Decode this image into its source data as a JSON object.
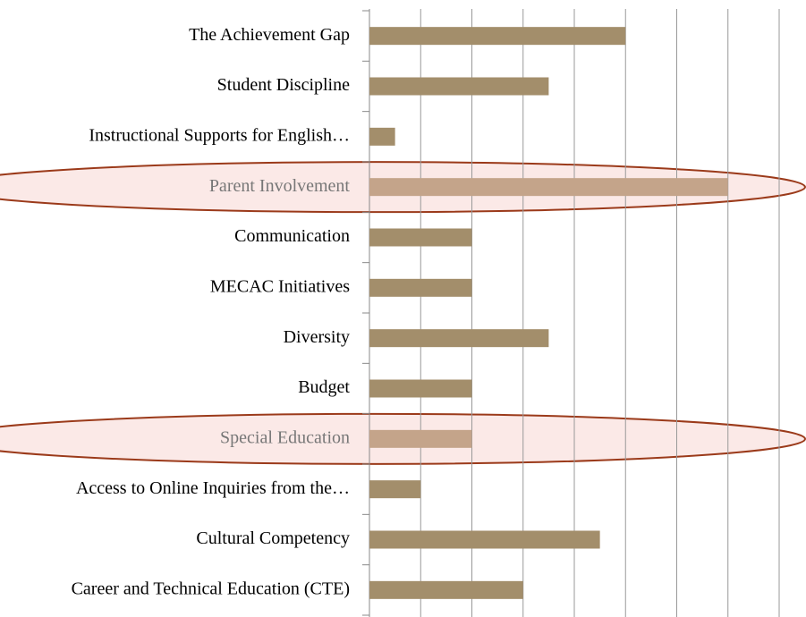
{
  "chart_data": {
    "type": "hbar",
    "categories": [
      "The Achievement Gap",
      "Student Discipline",
      "Instructional Supports for English…",
      "Parent Involvement",
      "Communication",
      "MECAC Initiatives",
      "Diversity",
      "Budget",
      "Special Education",
      "Access to Online Inquiries from the…",
      "Cultural Competency",
      "Career and Technical Education (CTE)"
    ],
    "values": [
      5,
      3.5,
      0.5,
      7,
      2,
      2,
      3.5,
      2,
      2,
      1,
      4.5,
      3
    ],
    "color": "#a38e6b",
    "highlight_color": "#c4a48a",
    "colors": [
      "#a38e6b",
      "#a38e6b",
      "#a38e6b",
      "#c4a48a",
      "#a38e6b",
      "#a38e6b",
      "#a38e6b",
      "#a38e6b",
      "#c4a48a",
      "#a38e6b",
      "#a38e6b",
      "#a38e6b"
    ],
    "xlim": [
      0,
      8
    ],
    "xticks": [
      0,
      1,
      2,
      3,
      4,
      5,
      6,
      7,
      8
    ],
    "grid": true
  }
}
